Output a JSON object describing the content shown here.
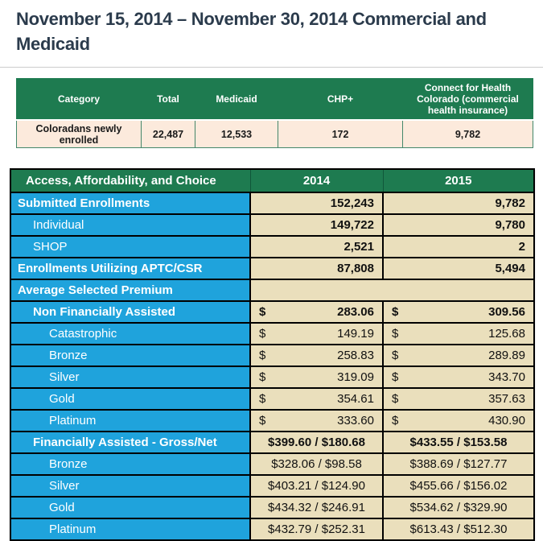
{
  "colors": {
    "green": "#1E7B50",
    "blue": "#1FA3DC",
    "tan": "#EADFBC",
    "peach": "#FCEADC",
    "title": "#2B3B4C"
  },
  "title": {
    "line1": "November 15, 2014 – November 30, 2014 Commercial and",
    "line2": "Medicaid"
  },
  "summary_table": {
    "columns": [
      "Category",
      "Total",
      "Medicaid",
      "CHP+",
      "Connect for Health Colorado (commercial health insurance)"
    ],
    "row": {
      "category": "Coloradans newly enrolled",
      "total": "22,487",
      "medicaid": "12,533",
      "chp_plus": "172",
      "connect_for_health": "9,782"
    }
  },
  "enrollment_table": {
    "currency_symbol": "$",
    "header": {
      "label": "Access, Affordability, and Choice",
      "col_2014": "2014",
      "col_2015": "2015"
    },
    "rows": [
      {
        "label": "Submitted Enrollments",
        "indent": 0,
        "bold": true,
        "type": "number",
        "v2014": "152,243",
        "v2015": "9,782"
      },
      {
        "label": "Individual",
        "indent": 1,
        "bold": false,
        "type": "number",
        "v2014": "149,722",
        "v2015": "9,780"
      },
      {
        "label": "SHOP",
        "indent": 1,
        "bold": false,
        "type": "number",
        "v2014": "2,521",
        "v2015": "2"
      },
      {
        "label": "Enrollments Utilizing APTC/CSR",
        "indent": 0,
        "bold": true,
        "type": "number",
        "v2014": "87,808",
        "v2015": "5,494"
      },
      {
        "label": "Average Selected Premium",
        "indent": 0,
        "bold": true,
        "type": "empty",
        "v2014": "",
        "v2015": ""
      },
      {
        "label": "Non Financially Assisted",
        "indent": 1,
        "bold": true,
        "type": "currency",
        "v2014": "283.06",
        "v2015": "309.56"
      },
      {
        "label": "Catastrophic",
        "indent": 2,
        "bold": false,
        "type": "currency",
        "v2014": "149.19",
        "v2015": "125.68"
      },
      {
        "label": "Bronze",
        "indent": 2,
        "bold": false,
        "type": "currency",
        "v2014": "258.83",
        "v2015": "289.89"
      },
      {
        "label": "Silver",
        "indent": 2,
        "bold": false,
        "type": "currency",
        "v2014": "319.09",
        "v2015": "343.70"
      },
      {
        "label": "Gold",
        "indent": 2,
        "bold": false,
        "type": "currency",
        "v2014": "354.61",
        "v2015": "357.63"
      },
      {
        "label": "Platinum",
        "indent": 2,
        "bold": false,
        "type": "currency",
        "v2014": "333.60",
        "v2015": "430.90"
      },
      {
        "label": "Financially Assisted - Gross/Net",
        "indent": 1,
        "bold": true,
        "type": "gross_net",
        "v2014": "$399.60 / $180.68",
        "v2015": "$433.55 / $153.58"
      },
      {
        "label": "Bronze",
        "indent": 2,
        "bold": false,
        "type": "gross_net",
        "v2014": "$328.06 / $98.58",
        "v2015": "$388.69 / $127.77"
      },
      {
        "label": "Silver",
        "indent": 2,
        "bold": false,
        "type": "gross_net",
        "v2014": "$403.21 / $124.90",
        "v2015": "$455.66 / $156.02"
      },
      {
        "label": "Gold",
        "indent": 2,
        "bold": false,
        "type": "gross_net",
        "v2014": "$434.32 / $246.91",
        "v2015": "$534.62 / $329.90"
      },
      {
        "label": "Platinum",
        "indent": 2,
        "bold": false,
        "type": "gross_net",
        "v2014": "$432.79 / $252.31",
        "v2015": "$613.43 / $512.30"
      }
    ]
  }
}
